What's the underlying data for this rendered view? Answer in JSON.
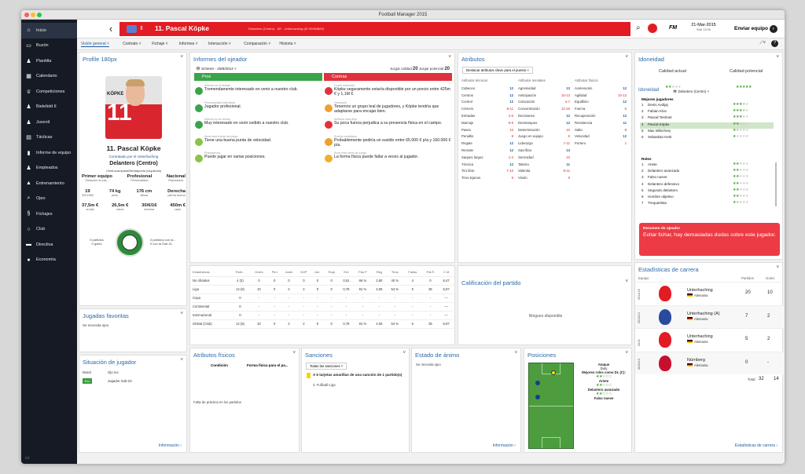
{
  "window": {
    "title": "Football Manager 2015"
  },
  "sidebar": {
    "items": [
      {
        "label": "Inicio",
        "icon": "home-icon"
      },
      {
        "label": "Buzón",
        "icon": "inbox-icon"
      },
      {
        "label": "Plantilla",
        "icon": "squad-icon"
      },
      {
        "label": "Calendario",
        "icon": "calendar-icon"
      },
      {
        "label": "Competiciones",
        "icon": "trophy-icon"
      },
      {
        "label": "Bielefeld II",
        "icon": "team-icon"
      },
      {
        "label": "Juvenil",
        "icon": "team-icon"
      },
      {
        "label": "Tácticas",
        "icon": "tactics-icon"
      },
      {
        "label": "Informe de equipo",
        "icon": "report-icon"
      },
      {
        "label": "Empleados",
        "icon": "staff-icon"
      },
      {
        "label": "Entrenamiento",
        "icon": "training-icon"
      },
      {
        "label": "Ojeo",
        "icon": "scouting-icon"
      },
      {
        "label": "Fichajes",
        "icon": "transfers-icon"
      },
      {
        "label": "Club",
        "icon": "club-icon"
      },
      {
        "label": "Directiva",
        "icon": "board-icon"
      },
      {
        "label": "Economía",
        "icon": "finance-icon"
      }
    ]
  },
  "header": {
    "player_name": "11. Pascal Köpke",
    "player_sub": "Delantero (Centro) · AR · Unterhaching (ID 92064869)",
    "date": "21-Mar-2015",
    "time": "Sab 13:00",
    "fm": "FM",
    "send_button": "Enviar equipo"
  },
  "tabs": [
    "Visión general",
    "Contrato",
    "Fichaje",
    "Informes",
    "Interacción",
    "Comparación",
    "Historia"
  ],
  "profile": {
    "title": "Profile 180px",
    "shirt_name": "KÖPKE",
    "shirt_number": "11",
    "name": "11. Pascal Köpke",
    "club": "Contratado por el Unterhaching",
    "position": "Delantero (Centro)",
    "role_line": "Centrocampista/Mediapunta (izquierda)",
    "badges": [
      {
        "v": "Primer equipo",
        "l": "Situación en pla..."
      },
      {
        "v": "Profesional",
        "l": "Personalidad"
      },
      {
        "v": "Nacional",
        "l": "Reputación"
      }
    ],
    "stats1": [
      {
        "v": "19",
        "l": "3/9/1995"
      },
      {
        "v": "74 kg",
        "l": "peso"
      },
      {
        "v": "176 cm",
        "l": "altura"
      },
      {
        "v": "Derecha",
        "l": "pierna buena"
      }
    ],
    "stats2": [
      {
        "v": "37,5m €",
        "l": "al año"
      },
      {
        "v": "26,5m €",
        "l": "netos"
      },
      {
        "v": "30/6/16",
        "l": "termina"
      },
      {
        "v": "450m €",
        "l": "valor"
      }
    ],
    "intl_left": [
      "0 partidos",
      "0 goles"
    ],
    "intl_right": [
      "0 partidos con la...",
      "0 con la Sub-21"
    ]
  },
  "favmoves": {
    "title": "Jugadas favoritas",
    "text": "Se necesita ojeo"
  },
  "situation": {
    "title": "Situación de jugador",
    "moral_label": "Moral",
    "ojo_label": "Ojo rec",
    "badge": "Exc",
    "badge_text": "Jugador Sub-23",
    "link": "Información"
  },
  "scout": {
    "title": "Informes del ojeador",
    "scout": "Scherer - 29/8/2014",
    "pros": "Pros",
    "contras": "Contras",
    "ratings": [
      {
        "label": "Juzgar calidad",
        "v": "20"
      },
      {
        "label": "Juzgar potencial",
        "v": "20"
      }
    ],
    "pros_items": [
      {
        "h": "Interés en el fichaje",
        "t": "Tremendamente interesado en venir a nuestro club."
      },
      {
        "h": "Personalidad individual",
        "t": "Jugador profesional."
      },
      {
        "h": "Interés en la cesión",
        "t": "Muy interesado en venir cedido a nuestro club."
      },
      {
        "h": "Área más fuerte de juego",
        "t": "Tiene una buena punta de velocidad."
      },
      {
        "h": "Polivalencia",
        "t": "Puede jugar en varias posiciones."
      }
    ],
    "contras_items": [
      {
        "h": "Coste estimado",
        "t": "Köpke seguramente estaría disponible por un precio entre 425m € y 1,1M €."
      },
      {
        "h": "Vestuario",
        "t": "Tenemos un grupo leal de jugadores, y Köpke tendría que adaptarse para encajar bien."
      },
      {
        "h": "Atributo más flojo",
        "t": "Su poca fuerza perjudica a su presencia física en el campo."
      },
      {
        "h": "Sueldo solicitado",
        "t": "Probablemente pediría un sueldo entre 65.000 € p/a y 160.000 € p/a."
      },
      {
        "h": "Área más débil de juego",
        "t": "La forma física puede fallar a veces al jugador."
      }
    ]
  },
  "stats": {
    "headers": [
      "Estadísticas",
      "Parti...",
      "Goles",
      "Pen",
      "Asist",
      "MJP",
      "Am.",
      "Roja",
      "Ent",
      "Pas P",
      "Reg",
      "Tiros",
      "Faltas",
      "Pal R",
      "C M"
    ],
    "rows": [
      [
        "No oficiales",
        "4 (3)",
        "0",
        "0",
        "0",
        "0",
        "0",
        "0",
        "0,51",
        "66 %",
        "2,80",
        "40 %",
        "4",
        "0",
        "6,47"
      ],
      [
        "Liga",
        "14 (6)",
        "10",
        "0",
        "2",
        "2",
        "0",
        "0",
        "0,78",
        "81 %",
        "2,06",
        "54 %",
        "5",
        "35",
        "6,97"
      ],
      [
        "Copa",
        "0",
        "-",
        "-",
        "-",
        "-",
        "-",
        "-",
        "-",
        "-",
        "-",
        "-",
        "-",
        "-",
        "—"
      ],
      [
        "Continental",
        "0",
        "-",
        "-",
        "-",
        "-",
        "-",
        "-",
        "-",
        "-",
        "-",
        "-",
        "-",
        "-",
        "—"
      ],
      [
        "Internacional",
        "0",
        "-",
        "-",
        "-",
        "-",
        "-",
        "-",
        "-",
        "-",
        "-",
        "-",
        "-",
        "-",
        "—"
      ],
      [
        "Global (Club)",
        "14 (6)",
        "10",
        "0",
        "2",
        "2",
        "0",
        "0",
        "0,78",
        "81 %",
        "2,06",
        "54 %",
        "5",
        "35",
        "6,97"
      ]
    ]
  },
  "attributes": {
    "title": "Atributos",
    "dropdown": "Destacar atributos clave para el puesto",
    "headers": [
      "Atributos técnicos",
      "Atributos mentales",
      "Atributos físicos"
    ],
    "tech": [
      [
        "Cabeceo",
        "12"
      ],
      [
        "Centros",
        "12"
      ],
      [
        "Control",
        "12"
      ],
      [
        "Córners",
        "8-11"
      ],
      [
        "Entradas",
        "2-6"
      ],
      [
        "Marcaje",
        "6-9"
      ],
      [
        "Pases",
        "10"
      ],
      [
        "Penaltis",
        "8"
      ],
      [
        "Regate",
        "12"
      ],
      [
        "Remate",
        "12"
      ],
      [
        "Saques largos",
        "1-3"
      ],
      [
        "Técnica",
        "12"
      ],
      [
        "Tiro libre",
        "7-10"
      ],
      [
        "Tiros lejanos",
        "9"
      ]
    ],
    "mental": [
      [
        "Agresividad",
        "13"
      ],
      [
        "Anticipación",
        "10-13"
      ],
      [
        "Colocación",
        "4-7"
      ],
      [
        "Concentración",
        "12-15"
      ],
      [
        "Decisiones",
        "12"
      ],
      [
        "Desmarques",
        "12"
      ],
      [
        "Determinación",
        "10"
      ],
      [
        "Juego en equipo",
        "9"
      ],
      [
        "Liderazgo",
        "7-11"
      ],
      [
        "Sacrificio",
        "13"
      ],
      [
        "Serenidad",
        "10"
      ],
      [
        "Talento",
        "11"
      ],
      [
        "Valentía",
        "8-11"
      ],
      [
        "Visión",
        "9"
      ]
    ],
    "physical": [
      [
        "Aceleración",
        "12"
      ],
      [
        "Agilidad",
        "10-13"
      ],
      [
        "Equilibrio",
        "12"
      ],
      [
        "Fuerza",
        "6"
      ],
      [
        "Recuperación",
        "13"
      ],
      [
        "Resistencia",
        "11"
      ],
      [
        "Salto",
        "8"
      ],
      [
        "Velocidad",
        "12"
      ],
      [
        "Portero",
        "1"
      ]
    ]
  },
  "ability": {
    "title": "Idoneidad",
    "current": "Calidad actual",
    "potential": "Calidad potencial",
    "current_stars": 2,
    "potential_stars": 5,
    "sub_title": "Idoneidad",
    "role_dropdown": "Delantero (Centro)",
    "best_title": "Mejores jugadores",
    "best": [
      [
        "1",
        "Denis Avdijaj",
        3.5
      ],
      [
        "2",
        "Fabian Klos",
        3.5
      ],
      [
        "3",
        "Pascal Testroet",
        3
      ],
      [
        "4",
        "Pascal Köpke",
        2
      ],
      [
        "5",
        "Max Wilschrey",
        1.5
      ],
      [
        "6",
        "Sebastian Kerk",
        1
      ]
    ],
    "roles_title": "Roles",
    "roles": [
      [
        "1",
        "Ariete",
        2
      ],
      [
        "2",
        "Delantero avanzado",
        2
      ],
      [
        "3",
        "Falso nueve",
        2
      ],
      [
        "4",
        "Delantero defensivo",
        2
      ],
      [
        "5",
        "Segundo delantero",
        2
      ],
      [
        "6",
        "Hombre objetivo",
        2
      ],
      [
        "7",
        "Trequartista",
        1.5
      ]
    ],
    "summary_title": "Resumen de ojeador",
    "summary": "Evitar fichar, hay demasiadas dudas sobre este jugador."
  },
  "career": {
    "title": "Estadísticas de carrera",
    "col_team": "Equipo",
    "col_apps": "Partidos",
    "col_goals": "Goles",
    "rows": [
      [
        "2014/15",
        "Unterhaching",
        "Alemania",
        "20",
        "10"
      ],
      [
        "2013/14",
        "Unterhaching (A)",
        "Alemania",
        "7",
        "2"
      ],
      [
        "2013",
        "Unterhaching",
        "Alemania",
        "5",
        "2"
      ],
      [
        "2010/13",
        "Núrnberg",
        "Alemania",
        "0",
        "-"
      ]
    ],
    "total_label": "Total",
    "total_apps": "32",
    "total_goals": "14",
    "link": "Estadísticas de carrera"
  },
  "rating": {
    "title": "Calificación del partido",
    "empty": "Ninguno disponible"
  },
  "physical": {
    "title": "Atributos físicos",
    "col1": "Condición",
    "col2": "Forma física para el pa...",
    "text": "Falta de práctica en los partidos"
  },
  "bans": {
    "title": "Sanciones",
    "dropdown": "Todas las sanciones",
    "item": "A 5 tarjetas amarillas de una sanción de 1 partido(s)",
    "comp": "3. Fußball-Liga"
  },
  "mood": {
    "title": "Estado de ánimo",
    "text": "Se necesita ojeo",
    "link": "Información"
  },
  "positions": {
    "title": "Posiciones",
    "lines": [
      "Ataque",
      "Duty",
      "Mejores roles como DL (C):",
      "Ariete",
      "Delantero avanzado",
      "Falso nueve"
    ]
  }
}
